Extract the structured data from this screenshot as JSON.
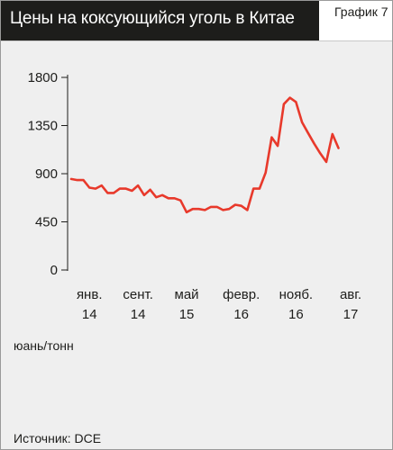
{
  "header": {
    "title": "Цены на коксующийся уголь в Китае",
    "chart_number": "График 7"
  },
  "unit_label": "юань/тонн",
  "source_label": "Источник: DCE",
  "colors": {
    "line": "#e8392b",
    "title_bg": "#1d1d1b",
    "panel_bg": "#efefef"
  },
  "chart_data": {
    "type": "line",
    "title": "Цены на коксующийся уголь в Китае",
    "ylabel": "юань/тонн",
    "ylim": [
      0,
      1800
    ],
    "yticks": [
      0,
      450,
      900,
      1350,
      1800
    ],
    "ytick_labels": [
      "0",
      "450",
      "900",
      "1350",
      "1800"
    ],
    "xlim": [
      0,
      46
    ],
    "xticks": [
      {
        "x": 3,
        "line1": "янв.",
        "line2": "14"
      },
      {
        "x": 11,
        "line1": "сент.",
        "line2": "14"
      },
      {
        "x": 19,
        "line1": "май",
        "line2": "15"
      },
      {
        "x": 28,
        "line1": "февр.",
        "line2": "16"
      },
      {
        "x": 37,
        "line1": "нояб.",
        "line2": "16"
      },
      {
        "x": 46,
        "line1": "авг.",
        "line2": "17"
      }
    ],
    "grid": false,
    "series": [
      {
        "x": [
          0,
          1,
          2,
          3,
          4,
          5,
          6,
          7,
          8,
          9,
          10,
          11,
          12,
          13,
          14,
          15,
          16,
          17,
          18,
          19,
          20,
          21,
          22,
          23,
          24,
          25,
          26,
          27,
          28,
          29,
          30,
          31,
          32,
          33,
          34,
          35,
          36,
          37,
          38,
          39,
          40,
          41,
          42,
          43,
          44,
          45,
          46
        ],
        "values": [
          850,
          840,
          840,
          770,
          760,
          790,
          720,
          720,
          760,
          760,
          740,
          790,
          700,
          750,
          680,
          700,
          670,
          670,
          650,
          540,
          570,
          570,
          560,
          590,
          590,
          560,
          570,
          610,
          600,
          560,
          760,
          760,
          910,
          1240,
          1160,
          1550,
          1610,
          1570,
          1380,
          1280,
          1180,
          1090,
          1010,
          1270,
          1140,
          null,
          null
        ]
      }
    ]
  }
}
